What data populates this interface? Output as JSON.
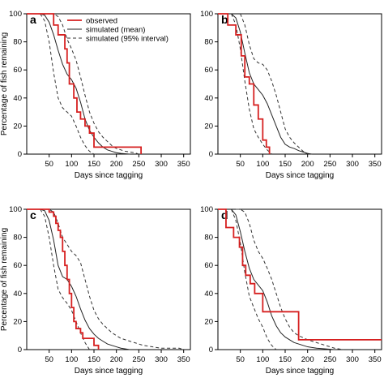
{
  "figure": {
    "legend": {
      "entries": [
        {
          "label": "observed",
          "series": "observed"
        },
        {
          "label": "simulated (mean)",
          "series": "mean"
        },
        {
          "label": "simulated (95% interval)",
          "series": "interval"
        }
      ]
    },
    "series_styles": {
      "observed": {
        "color": "#d62020",
        "dash": "none"
      },
      "mean": {
        "color": "#222222",
        "dash": "none"
      },
      "interval": {
        "color": "#333333",
        "dash": "4,3"
      }
    }
  },
  "chart_data": [
    {
      "type": "line",
      "panel": "a",
      "xlabel": "Days since tagging",
      "ylabel": "Percentage of fish remaining",
      "xlim": [
        0,
        365
      ],
      "ylim": [
        0,
        100
      ],
      "xticks": [
        50,
        100,
        150,
        200,
        250,
        300,
        350
      ],
      "yticks": [
        0,
        20,
        40,
        60,
        80,
        100
      ],
      "legend_position": "top-center",
      "series": [
        {
          "name": "observed",
          "step": true,
          "x": [
            0,
            40,
            60,
            70,
            85,
            90,
            95,
            105,
            112,
            120,
            130,
            140,
            150,
            255
          ],
          "y": [
            100,
            100,
            92,
            85,
            75,
            65,
            50,
            40,
            30,
            25,
            20,
            15,
            5,
            0
          ]
        },
        {
          "name": "simulated (mean)",
          "x": [
            30,
            40,
            50,
            60,
            70,
            80,
            90,
            100,
            110,
            120,
            130,
            140,
            150,
            160,
            170,
            180,
            190,
            200,
            210,
            230
          ],
          "y": [
            100,
            99,
            94,
            85,
            74,
            64,
            57,
            53,
            47,
            37,
            25,
            17,
            12,
            8,
            5,
            3,
            2,
            1,
            0.5,
            0
          ]
        },
        {
          "name": "simulated (95% interval) lower",
          "x": [
            30,
            40,
            50,
            60,
            70,
            80,
            90,
            100,
            110,
            120,
            130,
            140,
            150
          ],
          "y": [
            100,
            95,
            80,
            58,
            40,
            33,
            30,
            27,
            20,
            12,
            6,
            2,
            0
          ]
        },
        {
          "name": "simulated (95% interval) upper",
          "x": [
            40,
            50,
            60,
            70,
            80,
            90,
            100,
            110,
            120,
            130,
            140,
            150,
            160,
            170,
            180,
            190,
            200,
            220,
            240,
            250
          ],
          "y": [
            100,
            100,
            100,
            98,
            92,
            82,
            75,
            67,
            55,
            42,
            30,
            22,
            16,
            12,
            9,
            6,
            4,
            2,
            1,
            0
          ]
        }
      ]
    },
    {
      "type": "line",
      "panel": "b",
      "xlabel": "Days since tagging",
      "ylabel": "",
      "xlim": [
        0,
        365
      ],
      "ylim": [
        0,
        100
      ],
      "xticks": [
        50,
        100,
        150,
        200,
        250,
        300,
        350
      ],
      "yticks": [
        0,
        20,
        40,
        60,
        80,
        100
      ],
      "series": [
        {
          "name": "observed",
          "step": true,
          "x": [
            0,
            22,
            40,
            52,
            60,
            70,
            80,
            90,
            100,
            108,
            115
          ],
          "y": [
            100,
            92,
            85,
            70,
            55,
            50,
            35,
            25,
            10,
            5,
            0
          ]
        },
        {
          "name": "simulated (mean)",
          "x": [
            30,
            40,
            50,
            60,
            70,
            80,
            90,
            100,
            110,
            120,
            130,
            140,
            150,
            160,
            170,
            180,
            190,
            200,
            210
          ],
          "y": [
            100,
            97,
            87,
            72,
            58,
            50,
            46,
            42,
            36,
            28,
            20,
            12,
            7,
            5,
            4,
            2.5,
            1.5,
            0.5,
            0
          ]
        },
        {
          "name": "simulated (95% interval) lower",
          "x": [
            30,
            40,
            50,
            60,
            70,
            80,
            90,
            100,
            110,
            120
          ],
          "y": [
            100,
            92,
            75,
            52,
            32,
            18,
            12,
            7,
            3,
            0
          ]
        },
        {
          "name": "simulated (95% interval) upper",
          "x": [
            50,
            60,
            70,
            80,
            90,
            100,
            110,
            120,
            130,
            140,
            150,
            160,
            170,
            180,
            190,
            200
          ],
          "y": [
            100,
            92,
            78,
            68,
            65,
            64,
            60,
            52,
            42,
            30,
            18,
            12,
            8,
            5,
            2,
            0
          ]
        }
      ]
    },
    {
      "type": "line",
      "panel": "c",
      "xlabel": "Days since tagging",
      "ylabel": "Percentage of fish remaining",
      "xlim": [
        0,
        365
      ],
      "ylim": [
        0,
        100
      ],
      "xticks": [
        50,
        100,
        150,
        200,
        250,
        300,
        350
      ],
      "yticks": [
        0,
        20,
        40,
        60,
        80,
        100
      ],
      "series": [
        {
          "name": "observed",
          "step": true,
          "x": [
            0,
            40,
            50,
            60,
            65,
            70,
            75,
            80,
            85,
            90,
            95,
            100,
            105,
            110,
            120,
            125,
            150,
            160
          ],
          "y": [
            100,
            100,
            98,
            95,
            90,
            85,
            80,
            70,
            60,
            50,
            40,
            30,
            20,
            15,
            12,
            8,
            3,
            0
          ]
        },
        {
          "name": "simulated (mean)",
          "x": [
            30,
            40,
            50,
            60,
            70,
            80,
            90,
            100,
            110,
            120,
            130,
            140,
            150,
            160,
            170,
            180,
            190,
            200,
            210,
            230
          ],
          "y": [
            100,
            99,
            92,
            78,
            60,
            52,
            50,
            45,
            38,
            29,
            21,
            15,
            11,
            8,
            6,
            4,
            3,
            2,
            1,
            0
          ]
        },
        {
          "name": "simulated (95% interval) lower",
          "x": [
            30,
            40,
            50,
            60,
            70,
            80,
            90,
            100,
            110,
            120,
            130,
            140
          ],
          "y": [
            100,
            95,
            80,
            60,
            43,
            37,
            33,
            28,
            20,
            12,
            5,
            0
          ]
        },
        {
          "name": "simulated (95% interval) upper",
          "x": [
            40,
            50,
            60,
            70,
            80,
            90,
            100,
            110,
            120,
            130,
            140,
            150,
            160,
            170,
            180,
            190,
            200,
            210,
            220,
            230,
            240,
            250,
            260,
            280,
            300,
            320,
            340,
            350
          ],
          "y": [
            100,
            100,
            98,
            90,
            80,
            75,
            70,
            67,
            62,
            50,
            38,
            28,
            22,
            18,
            15,
            12,
            10,
            8,
            7,
            6,
            5,
            4,
            3,
            2,
            1,
            1,
            1,
            0
          ]
        }
      ]
    },
    {
      "type": "line",
      "panel": "d",
      "xlabel": "Days since tagging",
      "ylabel": "",
      "xlim": [
        0,
        365
      ],
      "ylim": [
        0,
        100
      ],
      "xticks": [
        50,
        100,
        150,
        200,
        250,
        300,
        350
      ],
      "yticks": [
        0,
        20,
        40,
        60,
        80,
        100
      ],
      "series": [
        {
          "name": "observed",
          "step": true,
          "x": [
            0,
            18,
            35,
            48,
            55,
            62,
            72,
            82,
            100,
            135,
            180,
            365
          ],
          "y": [
            100,
            87,
            80,
            73,
            60,
            53,
            47,
            40,
            27,
            27,
            7,
            7
          ]
        },
        {
          "name": "simulated (mean)",
          "x": [
            30,
            40,
            50,
            60,
            70,
            80,
            90,
            100,
            110,
            120,
            130,
            140,
            150,
            160,
            170,
            180,
            190,
            200,
            220,
            240,
            260
          ],
          "y": [
            100,
            96,
            84,
            70,
            58,
            50,
            46,
            42,
            34,
            24,
            17,
            12,
            9,
            7,
            5,
            4,
            3,
            2,
            1,
            0.5,
            0
          ]
        },
        {
          "name": "simulated (95% interval) lower",
          "x": [
            30,
            40,
            50,
            60,
            70,
            80,
            90,
            100,
            110,
            120,
            130
          ],
          "y": [
            100,
            92,
            76,
            55,
            38,
            30,
            22,
            16,
            8,
            3,
            0
          ]
        },
        {
          "name": "simulated (95% interval) upper",
          "x": [
            40,
            50,
            60,
            70,
            80,
            90,
            100,
            110,
            120,
            130,
            140,
            150,
            160,
            170,
            180,
            200,
            220,
            240,
            260,
            280
          ],
          "y": [
            100,
            100,
            98,
            90,
            78,
            70,
            65,
            58,
            50,
            40,
            30,
            22,
            16,
            12,
            10,
            7,
            5,
            3,
            1,
            0
          ]
        }
      ]
    }
  ]
}
